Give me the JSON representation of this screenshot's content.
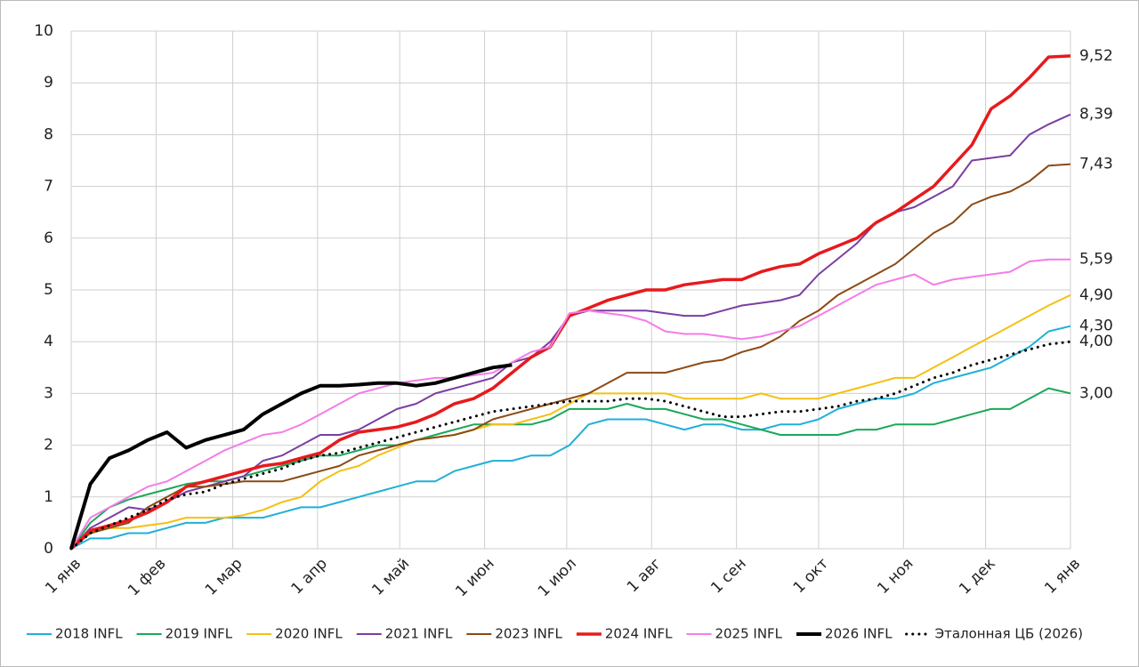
{
  "chart_data": {
    "type": "line",
    "x": [
      0,
      7,
      14,
      21,
      28,
      35,
      42,
      49,
      56,
      63,
      70,
      77,
      84,
      91,
      98,
      105,
      112,
      119,
      126,
      133,
      140,
      147,
      154,
      161,
      168,
      175,
      182,
      189,
      196,
      203,
      210,
      217,
      224,
      231,
      238,
      245,
      252,
      259,
      266,
      273,
      280,
      287,
      294,
      301,
      308,
      315,
      322,
      329,
      336,
      343,
      350,
      357,
      365
    ],
    "xlim": [
      0,
      365
    ],
    "xticks": [
      {
        "value": 0,
        "label": "1 янв"
      },
      {
        "value": 31,
        "label": "1 фев"
      },
      {
        "value": 59,
        "label": "1 мар"
      },
      {
        "value": 90,
        "label": "1 апр"
      },
      {
        "value": 120,
        "label": "1 май"
      },
      {
        "value": 151,
        "label": "1 июн"
      },
      {
        "value": 181,
        "label": "1 июл"
      },
      {
        "value": 212,
        "label": "1 авг"
      },
      {
        "value": 243,
        "label": "1 сен"
      },
      {
        "value": 273,
        "label": "1 окт"
      },
      {
        "value": 304,
        "label": "1 ноя"
      },
      {
        "value": 334,
        "label": "1 дек"
      },
      {
        "value": 365,
        "label": "1 янв"
      }
    ],
    "ylim": [
      0,
      10
    ],
    "yticks": [
      0,
      1,
      2,
      3,
      4,
      5,
      6,
      7,
      8,
      9,
      10
    ],
    "grid": true,
    "legend": "bottom",
    "series": [
      {
        "name": "2018 INFL",
        "color": "#1fb0d8",
        "width": 2,
        "end_label": "4,30",
        "values": [
          0,
          0.2,
          0.2,
          0.3,
          0.3,
          0.4,
          0.5,
          0.5,
          0.6,
          0.6,
          0.6,
          0.7,
          0.8,
          0.8,
          0.9,
          1.0,
          1.1,
          1.2,
          1.3,
          1.3,
          1.5,
          1.6,
          1.7,
          1.7,
          1.8,
          1.8,
          2.0,
          2.4,
          2.5,
          2.5,
          2.5,
          2.4,
          2.3,
          2.4,
          2.4,
          2.3,
          2.3,
          2.4,
          2.4,
          2.5,
          2.7,
          2.8,
          2.9,
          2.9,
          3.0,
          3.2,
          3.3,
          3.4,
          3.5,
          3.7,
          3.9,
          4.2,
          4.3
        ]
      },
      {
        "name": "2019 INFL",
        "color": "#1aa85a",
        "width": 2,
        "end_label": "3,00",
        "values": [
          0,
          0.5,
          0.8,
          0.95,
          1.05,
          1.15,
          1.25,
          1.3,
          1.3,
          1.4,
          1.5,
          1.6,
          1.7,
          1.8,
          1.8,
          1.9,
          2.0,
          2.0,
          2.1,
          2.2,
          2.3,
          2.4,
          2.4,
          2.4,
          2.4,
          2.5,
          2.7,
          2.7,
          2.7,
          2.8,
          2.7,
          2.7,
          2.6,
          2.5,
          2.5,
          2.4,
          2.3,
          2.2,
          2.2,
          2.2,
          2.2,
          2.3,
          2.3,
          2.4,
          2.4,
          2.4,
          2.5,
          2.6,
          2.7,
          2.7,
          2.9,
          3.1,
          3.0
        ]
      },
      {
        "name": "2020 INFL",
        "color": "#f5c012",
        "width": 2,
        "end_label": "4,90",
        "values": [
          0,
          0.3,
          0.4,
          0.4,
          0.45,
          0.5,
          0.6,
          0.6,
          0.6,
          0.65,
          0.75,
          0.9,
          1.0,
          1.3,
          1.5,
          1.6,
          1.8,
          1.95,
          2.1,
          2.15,
          2.2,
          2.3,
          2.4,
          2.4,
          2.5,
          2.6,
          2.8,
          3.0,
          3.0,
          3.0,
          3.0,
          3.0,
          2.9,
          2.9,
          2.9,
          2.9,
          3.0,
          2.9,
          2.9,
          2.9,
          3.0,
          3.1,
          3.2,
          3.3,
          3.3,
          3.5,
          3.7,
          3.9,
          4.1,
          4.3,
          4.5,
          4.7,
          4.9
        ]
      },
      {
        "name": "2021 INFL",
        "color": "#7a3fa0",
        "width": 2,
        "end_label": "8,39",
        "values": [
          0,
          0.4,
          0.6,
          0.8,
          0.75,
          0.9,
          1.1,
          1.2,
          1.3,
          1.4,
          1.7,
          1.8,
          2.0,
          2.2,
          2.2,
          2.3,
          2.5,
          2.7,
          2.8,
          3.0,
          3.1,
          3.2,
          3.3,
          3.6,
          3.7,
          4.0,
          4.5,
          4.6,
          4.6,
          4.6,
          4.6,
          4.55,
          4.5,
          4.5,
          4.6,
          4.7,
          4.75,
          4.8,
          4.9,
          5.3,
          5.6,
          5.9,
          6.3,
          6.5,
          6.6,
          6.8,
          7.0,
          7.5,
          7.55,
          7.6,
          8.0,
          8.2,
          8.39
        ]
      },
      {
        "name": "2023 INFL",
        "color": "#8b4a14",
        "width": 2,
        "end_label": "7,43",
        "values": [
          0,
          0.3,
          0.4,
          0.5,
          0.8,
          1.0,
          1.2,
          1.2,
          1.25,
          1.3,
          1.3,
          1.3,
          1.4,
          1.5,
          1.6,
          1.8,
          1.9,
          2.0,
          2.1,
          2.15,
          2.2,
          2.3,
          2.5,
          2.6,
          2.7,
          2.8,
          2.9,
          3.0,
          3.2,
          3.4,
          3.4,
          3.4,
          3.5,
          3.6,
          3.65,
          3.8,
          3.9,
          4.1,
          4.4,
          4.6,
          4.9,
          5.1,
          5.3,
          5.5,
          5.8,
          6.1,
          6.3,
          6.65,
          6.8,
          6.9,
          7.1,
          7.4,
          7.43
        ]
      },
      {
        "name": "2024 INFL",
        "color": "#e8191c",
        "width": 3.5,
        "end_label": "9,52",
        "values": [
          0,
          0.35,
          0.45,
          0.55,
          0.7,
          0.9,
          1.2,
          1.3,
          1.4,
          1.5,
          1.6,
          1.65,
          1.75,
          1.85,
          2.1,
          2.25,
          2.3,
          2.35,
          2.45,
          2.6,
          2.8,
          2.9,
          3.1,
          3.4,
          3.7,
          3.9,
          4.5,
          4.65,
          4.8,
          4.9,
          5.0,
          5.0,
          5.1,
          5.15,
          5.2,
          5.2,
          5.35,
          5.45,
          5.5,
          5.7,
          5.85,
          6.0,
          6.3,
          6.5,
          6.75,
          7.0,
          7.4,
          7.8,
          8.5,
          8.75,
          9.1,
          9.5,
          9.52
        ]
      },
      {
        "name": "2025 INFL",
        "color": "#f47ce8",
        "width": 2,
        "end_label": "5,59",
        "values": [
          0,
          0.6,
          0.8,
          1.0,
          1.2,
          1.3,
          1.5,
          1.7,
          1.9,
          2.05,
          2.2,
          2.25,
          2.4,
          2.6,
          2.8,
          3.0,
          3.1,
          3.2,
          3.25,
          3.3,
          3.3,
          3.35,
          3.4,
          3.6,
          3.8,
          3.9,
          4.55,
          4.6,
          4.55,
          4.5,
          4.4,
          4.2,
          4.15,
          4.15,
          4.1,
          4.05,
          4.1,
          4.2,
          4.3,
          4.5,
          4.7,
          4.9,
          5.1,
          5.2,
          5.3,
          5.1,
          5.2,
          5.25,
          5.3,
          5.35,
          5.55,
          5.59,
          5.59
        ]
      },
      {
        "name": "2026 INFL",
        "color": "#000000",
        "width": 4,
        "values": [
          0,
          1.25,
          1.75,
          1.9,
          2.1,
          2.25,
          1.95,
          2.1,
          2.2,
          2.3,
          2.6,
          2.8,
          3.0,
          3.15,
          3.15,
          3.17,
          3.2,
          3.2,
          3.15,
          3.2,
          3.3,
          3.4,
          3.5,
          3.55,
          null,
          null,
          null,
          null,
          null,
          null,
          null,
          null,
          null,
          null,
          null,
          null,
          null,
          null,
          null,
          null,
          null,
          null,
          null,
          null,
          null,
          null,
          null,
          null,
          null,
          null,
          null,
          null,
          null
        ]
      },
      {
        "name": "Эталонная ЦБ (2026)",
        "color": "#000000",
        "width": 3,
        "dotted": true,
        "end_label": "4,00",
        "values": [
          0,
          0.3,
          0.45,
          0.6,
          0.75,
          0.95,
          1.05,
          1.1,
          1.25,
          1.35,
          1.45,
          1.55,
          1.7,
          1.8,
          1.85,
          1.95,
          2.05,
          2.15,
          2.25,
          2.35,
          2.45,
          2.55,
          2.65,
          2.7,
          2.75,
          2.8,
          2.85,
          2.85,
          2.85,
          2.9,
          2.9,
          2.85,
          2.75,
          2.65,
          2.55,
          2.55,
          2.6,
          2.65,
          2.65,
          2.7,
          2.75,
          2.85,
          2.9,
          3.0,
          3.15,
          3.3,
          3.4,
          3.55,
          3.65,
          3.75,
          3.85,
          3.95,
          4.0
        ]
      }
    ]
  }
}
